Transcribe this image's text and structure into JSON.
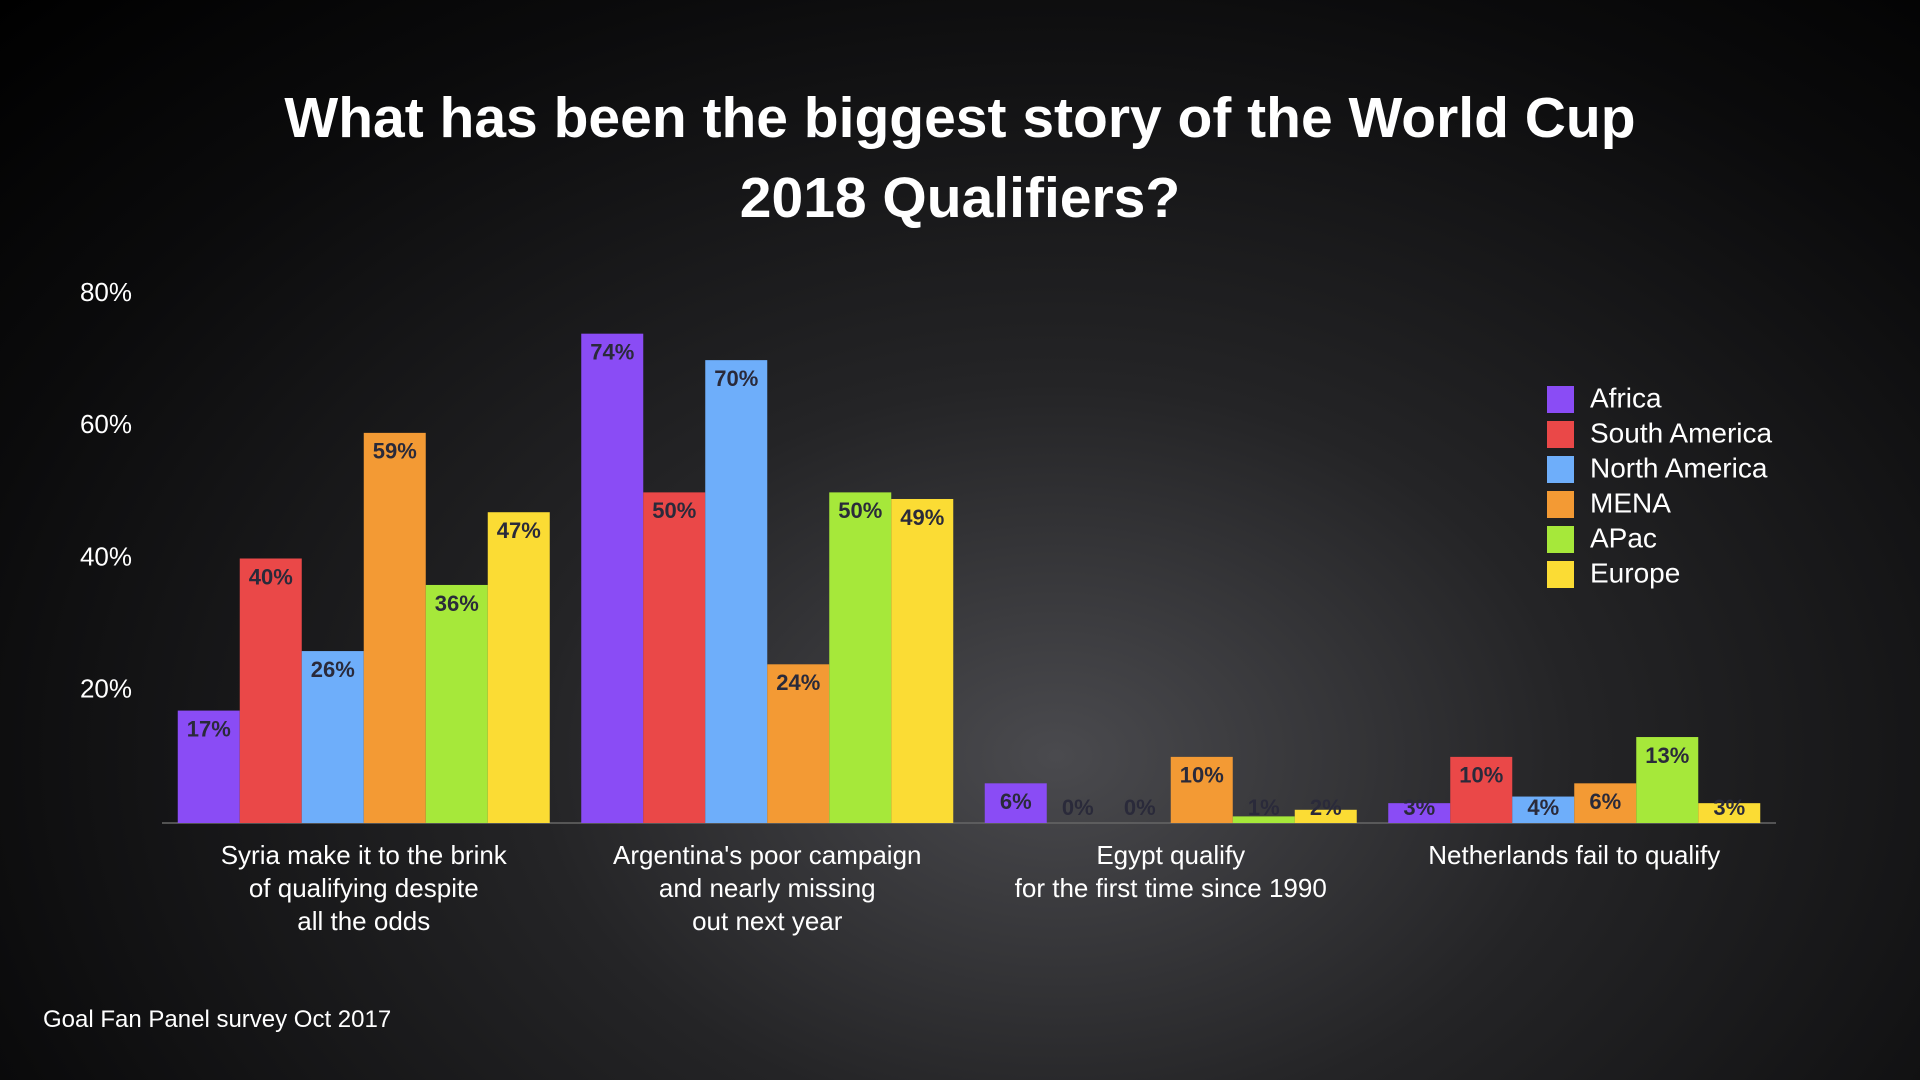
{
  "chart_data": {
    "type": "bar",
    "title": "What has been the biggest story of the World Cup\n2018 Qualifiers?",
    "categories": [
      "Syria make it to the brink\nof qualifying despite\nall the odds",
      "Argentina's poor campaign\nand nearly missing\nout next year",
      "Egypt qualify\nfor the first time since 1990",
      "Netherlands fail to qualify"
    ],
    "series": [
      {
        "name": "Africa",
        "color": "#8a4cf5",
        "values": [
          17,
          74,
          6,
          3
        ],
        "value_labels": [
          "17%",
          "74%",
          "6%",
          "3%"
        ]
      },
      {
        "name": "South America",
        "color": "#ea4848",
        "values": [
          40,
          50,
          0,
          10
        ],
        "value_labels": [
          "40%",
          "50%",
          "0%",
          "10%"
        ]
      },
      {
        "name": "North America",
        "color": "#6eaefa",
        "values": [
          26,
          70,
          0,
          4
        ],
        "value_labels": [
          "26%",
          "70%",
          "0%",
          "4%"
        ]
      },
      {
        "name": "MENA",
        "color": "#f39a34",
        "values": [
          59,
          24,
          10,
          6
        ],
        "value_labels": [
          "59%",
          "24%",
          "10%",
          "6%"
        ]
      },
      {
        "name": "APac",
        "color": "#a6e83a",
        "values": [
          36,
          50,
          1,
          13
        ],
        "value_labels": [
          "36%",
          "50%",
          "1%",
          "13%"
        ]
      },
      {
        "name": "Europe",
        "color": "#fbdc34",
        "values": [
          47,
          49,
          2,
          3
        ],
        "value_labels": [
          "47%",
          "49%",
          "2%",
          "3%"
        ]
      }
    ],
    "ylim": [
      0,
      80
    ],
    "yticks": [
      {
        "value": 20,
        "label": "20%"
      },
      {
        "value": 40,
        "label": "40%"
      },
      {
        "value": 60,
        "label": "60%"
      },
      {
        "value": 80,
        "label": "80%"
      }
    ],
    "legend": "right",
    "source": "Goal Fan Panel survey Oct 2017"
  }
}
